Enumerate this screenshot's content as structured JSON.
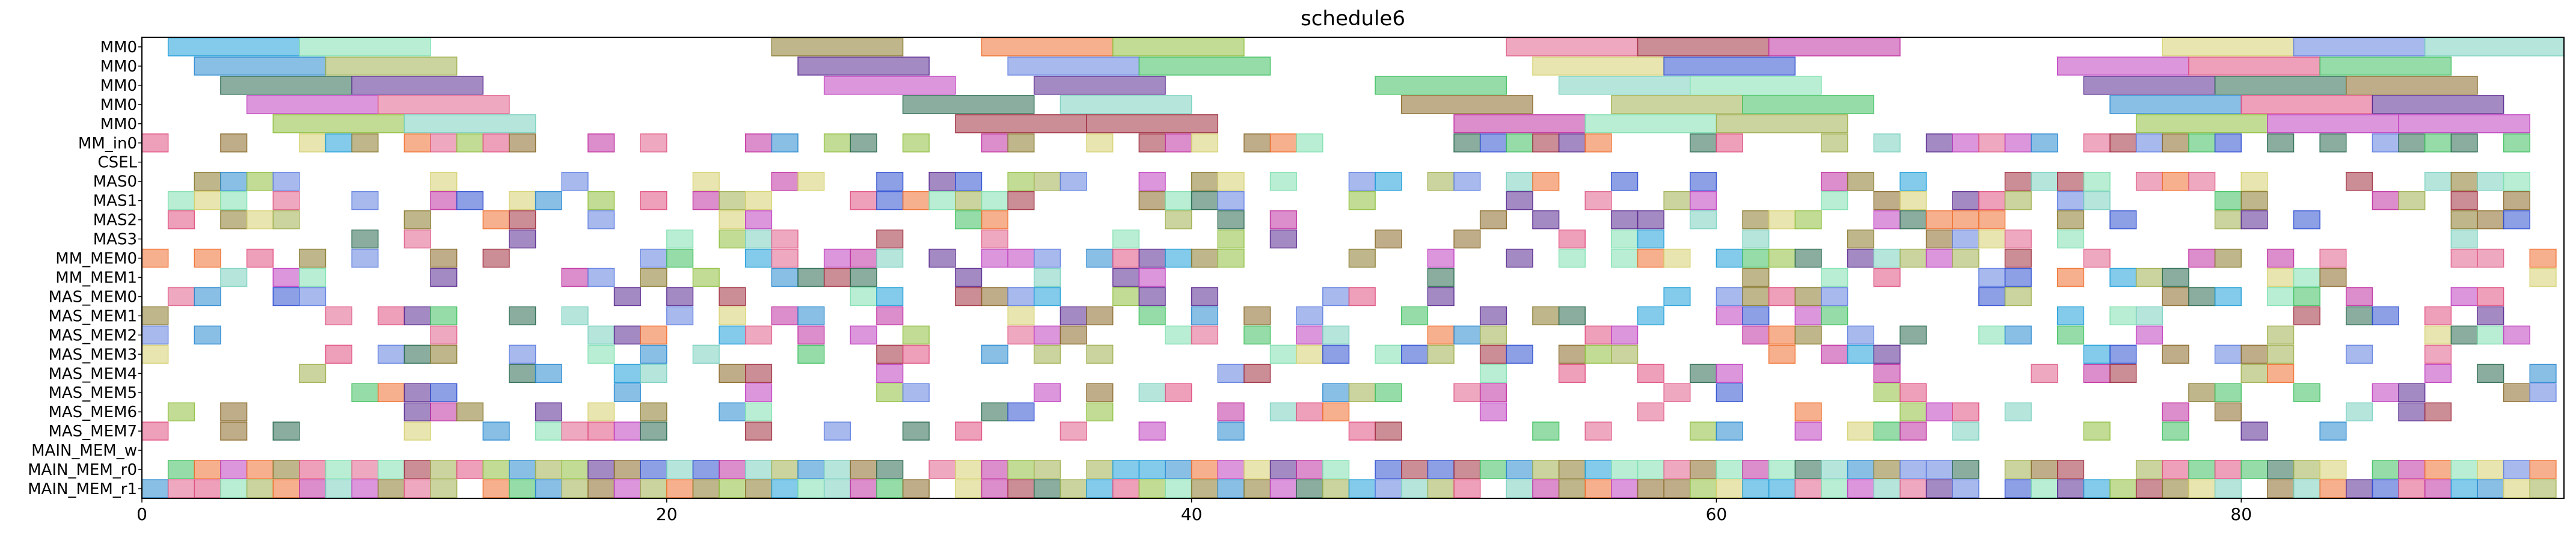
{
  "chart_data": {
    "type": "gantt",
    "title": "schedule6",
    "xlabel": "",
    "ylabel": "",
    "xlim": [
      0,
      92.3
    ],
    "x_ticks": [
      0,
      20,
      40,
      60,
      80
    ],
    "rows": [
      "MM0",
      "MM0",
      "MM0",
      "MM0",
      "MM0",
      "MM_in0",
      "CSEL",
      "MAS0",
      "MAS1",
      "MAS2",
      "MAS3",
      "MM_MEM0",
      "MM_MEM1",
      "MAS_MEM0",
      "MAS_MEM1",
      "MAS_MEM2",
      "MAS_MEM3",
      "MAS_MEM4",
      "MAS_MEM5",
      "MAS_MEM6",
      "MAS_MEM7",
      "MAIN_MEM_w",
      "MAIN_MEM_r0",
      "MAIN_MEM_r1"
    ],
    "grid": false,
    "legend": "none",
    "bar_opacity": 0.55,
    "palette": [
      "#1f9fd8",
      "#7fe0b0",
      "#8a7a2e",
      "#f07030",
      "#90c040",
      "#e0608a",
      "#a03040",
      "#c030a0",
      "#2a8ad0",
      "#d6d070",
      "#5a2a90",
      "#2a6a50",
      "#a0b050",
      "#e05080",
      "#40c060",
      "#8a6a2a",
      "#7ad0c0",
      "#6080e0",
      "#c040c0",
      "#3050d0"
    ],
    "bars": [
      {
        "row": 0,
        "start": 1.0,
        "end": 6.0,
        "c": 0
      },
      {
        "row": 0,
        "start": 6.0,
        "end": 11.0,
        "c": 1
      },
      {
        "row": 0,
        "start": 24.0,
        "end": 29.0,
        "c": 2
      },
      {
        "row": 0,
        "start": 32.0,
        "end": 37.0,
        "c": 3
      },
      {
        "row": 0,
        "start": 37.0,
        "end": 42.0,
        "c": 4
      },
      {
        "row": 0,
        "start": 52.0,
        "end": 57.0,
        "c": 5
      },
      {
        "row": 0,
        "start": 57.0,
        "end": 62.0,
        "c": 6
      },
      {
        "row": 0,
        "start": 62.0,
        "end": 67.0,
        "c": 7
      },
      {
        "row": 0,
        "start": 77.0,
        "end": 82.0,
        "c": 9
      },
      {
        "row": 0,
        "start": 82.0,
        "end": 87.0,
        "c": 17
      },
      {
        "row": 0,
        "start": 87.0,
        "end": 92.3,
        "c": 16
      },
      {
        "row": 1,
        "start": 2.0,
        "end": 7.0,
        "c": 8
      },
      {
        "row": 1,
        "start": 7.0,
        "end": 12.0,
        "c": 12
      },
      {
        "row": 1,
        "start": 25.0,
        "end": 30.0,
        "c": 10
      },
      {
        "row": 1,
        "start": 33.0,
        "end": 38.0,
        "c": 17
      },
      {
        "row": 1,
        "start": 38.0,
        "end": 43.0,
        "c": 14
      },
      {
        "row": 1,
        "start": 53.0,
        "end": 58.0,
        "c": 9
      },
      {
        "row": 1,
        "start": 58.0,
        "end": 63.0,
        "c": 19
      },
      {
        "row": 1,
        "start": 73.0,
        "end": 78.0,
        "c": 18
      },
      {
        "row": 1,
        "start": 78.0,
        "end": 83.0,
        "c": 13
      },
      {
        "row": 1,
        "start": 83.0,
        "end": 88.0,
        "c": 14
      },
      {
        "row": 2,
        "start": 3.0,
        "end": 8.0,
        "c": 11
      },
      {
        "row": 2,
        "start": 8.0,
        "end": 13.0,
        "c": 10
      },
      {
        "row": 2,
        "start": 26.0,
        "end": 31.0,
        "c": 18
      },
      {
        "row": 2,
        "start": 34.0,
        "end": 39.0,
        "c": 10
      },
      {
        "row": 2,
        "start": 47.0,
        "end": 52.0,
        "c": 14
      },
      {
        "row": 2,
        "start": 54.0,
        "end": 59.0,
        "c": 16
      },
      {
        "row": 2,
        "start": 59.0,
        "end": 64.0,
        "c": 1
      },
      {
        "row": 2,
        "start": 74.0,
        "end": 79.0,
        "c": 10
      },
      {
        "row": 2,
        "start": 79.0,
        "end": 84.0,
        "c": 11
      },
      {
        "row": 2,
        "start": 84.0,
        "end": 89.0,
        "c": 15
      },
      {
        "row": 3,
        "start": 4.0,
        "end": 9.0,
        "c": 18
      },
      {
        "row": 3,
        "start": 9.0,
        "end": 14.0,
        "c": 5
      },
      {
        "row": 3,
        "start": 29.0,
        "end": 34.0,
        "c": 11
      },
      {
        "row": 3,
        "start": 35.0,
        "end": 40.0,
        "c": 16
      },
      {
        "row": 3,
        "start": 48.0,
        "end": 53.0,
        "c": 15
      },
      {
        "row": 3,
        "start": 56.0,
        "end": 61.0,
        "c": 12
      },
      {
        "row": 3,
        "start": 61.0,
        "end": 66.0,
        "c": 14
      },
      {
        "row": 3,
        "start": 75.0,
        "end": 80.0,
        "c": 8
      },
      {
        "row": 3,
        "start": 80.0,
        "end": 85.0,
        "c": 13
      },
      {
        "row": 3,
        "start": 85.0,
        "end": 90.0,
        "c": 10
      },
      {
        "row": 4,
        "start": 5.0,
        "end": 10.0,
        "c": 4
      },
      {
        "row": 4,
        "start": 10.0,
        "end": 15.0,
        "c": 16
      },
      {
        "row": 4,
        "start": 31.0,
        "end": 36.0,
        "c": 6
      },
      {
        "row": 4,
        "start": 36.0,
        "end": 41.0,
        "c": 6
      },
      {
        "row": 4,
        "start": 50.0,
        "end": 55.0,
        "c": 7
      },
      {
        "row": 4,
        "start": 55.0,
        "end": 60.0,
        "c": 1
      },
      {
        "row": 4,
        "start": 60.0,
        "end": 65.0,
        "c": 12
      },
      {
        "row": 4,
        "start": 76.0,
        "end": 81.0,
        "c": 4
      },
      {
        "row": 4,
        "start": 81.0,
        "end": 86.0,
        "c": 18
      },
      {
        "row": 4,
        "start": 86.0,
        "end": 91.0,
        "c": 18
      }
    ]
  }
}
